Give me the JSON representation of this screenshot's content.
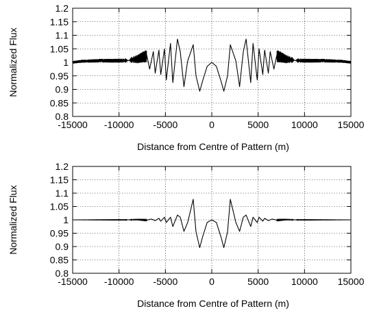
{
  "chart_data": [
    {
      "type": "line",
      "xlabel": "Distance from Centre of Pattern (m)",
      "ylabel": "Normalized Flux",
      "xlim": [
        -15000,
        15000
      ],
      "ylim": [
        0.8,
        1.2
      ],
      "xticks": [
        "-15000",
        "-10000",
        "-5000",
        "0",
        "5000",
        "10000",
        "15000"
      ],
      "yticks": [
        "0.8",
        "0.85",
        "0.9",
        "0.95",
        "1",
        "1.05",
        "1.1",
        "1.15",
        "1.2"
      ],
      "grid": true,
      "series": [
        {
          "x": [
            0,
            500,
            1000,
            1300,
            1700,
            2000,
            2600,
            3000,
            3400,
            3700,
            4200,
            4450,
            4900,
            5100,
            5500,
            5700,
            6100,
            6300,
            6700,
            7000,
            8000,
            9000,
            10000,
            11000,
            12000,
            13000,
            14000,
            15000
          ],
          "y": [
            1.0,
            0.985,
            0.93,
            0.893,
            0.95,
            1.065,
            1.005,
            0.91,
            1.04,
            1.086,
            0.925,
            1.07,
            0.935,
            1.05,
            0.955,
            1.045,
            0.96,
            1.04,
            0.975,
            1.025,
            1.012,
            1.007,
            1.006,
            1.006,
            1.006,
            1.005,
            1.004,
            1.0
          ],
          "mirrored": true,
          "amplitude_envelope": [
            [
              0,
              0.11
            ],
            [
              3000,
              0.09
            ],
            [
              5000,
              0.06
            ],
            [
              7000,
              0.025
            ],
            [
              9000,
              0.007
            ],
            [
              12000,
              0.006
            ],
            [
              15000,
              0.004
            ]
          ]
        }
      ]
    },
    {
      "type": "line",
      "xlabel": "Distance from Centre of Pattern (m)",
      "ylabel": "Normalized Flux",
      "xlim": [
        -15000,
        15000
      ],
      "ylim": [
        0.8,
        1.2
      ],
      "xticks": [
        "-15000",
        "-10000",
        "-5000",
        "0",
        "5000",
        "10000",
        "15000"
      ],
      "yticks": [
        "0.8",
        "0.85",
        "0.9",
        "0.95",
        "1",
        "1.05",
        "1.1",
        "1.15",
        "1.2"
      ],
      "grid": true,
      "series": [
        {
          "x": [
            0,
            500,
            1000,
            1300,
            1700,
            2000,
            2600,
            3000,
            3400,
            3700,
            4200,
            4450,
            4900,
            5100,
            5500,
            5700,
            6100,
            6500,
            7000,
            8000,
            9000,
            10000,
            12000,
            15000
          ],
          "y": [
            1.0,
            0.99,
            0.935,
            0.896,
            0.955,
            1.077,
            0.99,
            0.957,
            1.01,
            1.018,
            0.975,
            1.01,
            0.99,
            1.01,
            0.995,
            1.006,
            0.997,
            1.003,
            0.999,
            1.001,
            1.0,
            1.0,
            1.0,
            1.0
          ],
          "mirrored": true,
          "amplitude_envelope": [
            [
              0,
              0.1
            ],
            [
              2500,
              0.08
            ],
            [
              3500,
              0.04
            ],
            [
              5000,
              0.015
            ],
            [
              6500,
              0.005
            ],
            [
              8000,
              0.002
            ],
            [
              15000,
              0.0
            ]
          ]
        }
      ]
    }
  ]
}
